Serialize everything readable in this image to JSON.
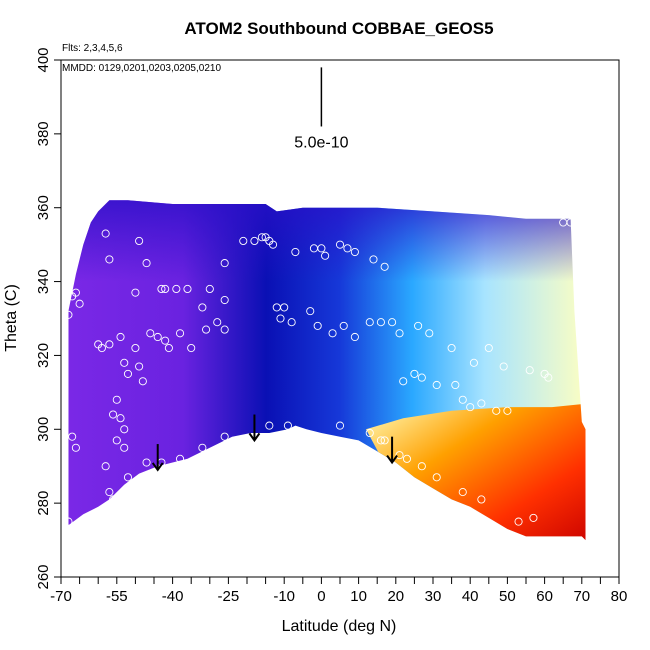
{
  "chart_data": {
    "type": "heatmap",
    "title": "ATOM2 Southbound COBBAE_GEOS5",
    "notes": {
      "flights": "Flts: 2,3,4,5,6",
      "dates": "MMDD: 0129,0201,0203,0205,0210"
    },
    "xlabel": "Latitude (deg N)",
    "ylabel": "Theta (C)",
    "xlim": [
      -70,
      80
    ],
    "ylim": [
      260,
      400
    ],
    "x_ticks": [
      -70,
      -55,
      -40,
      -25,
      -10,
      0,
      10,
      20,
      30,
      40,
      50,
      60,
      70,
      80
    ],
    "x_minor_ticks": [
      -65,
      -60,
      -50,
      -45,
      -35,
      -30,
      -20,
      -15,
      -5,
      5,
      15,
      25,
      35,
      45,
      55,
      65,
      75
    ],
    "y_ticks": [
      260,
      280,
      300,
      320,
      340,
      360,
      380,
      400
    ],
    "scale_bar": {
      "label": "5.0e-10",
      "x": 0,
      "y_top": 398,
      "y_bottom": 382
    },
    "colors": {
      "low": "#7a28e6",
      "mid": "#0a10b4",
      "cyan": "#2aa8ff",
      "pale": "#ffffc0",
      "orange": "#ffa000",
      "high": "#c80000"
    },
    "upper_boundary": [
      [
        -68,
        332
      ],
      [
        -66,
        342
      ],
      [
        -64,
        350
      ],
      [
        -62,
        356
      ],
      [
        -60,
        359
      ],
      [
        -57,
        362
      ],
      [
        -52,
        362
      ],
      [
        -40,
        361
      ],
      [
        -15,
        361
      ],
      [
        -12,
        359
      ],
      [
        -5,
        360
      ],
      [
        15,
        360
      ],
      [
        30,
        359
      ],
      [
        45,
        358
      ],
      [
        55,
        357
      ],
      [
        60,
        357
      ],
      [
        63,
        357
      ],
      [
        67,
        357
      ],
      [
        68,
        332
      ],
      [
        70,
        302
      ],
      [
        71,
        300
      ],
      [
        71,
        270
      ]
    ],
    "terrain": [
      [
        -68,
        274
      ],
      [
        -64,
        277
      ],
      [
        -60,
        279
      ],
      [
        -57,
        281
      ],
      [
        -53,
        285
      ],
      [
        -49,
        288
      ],
      [
        -44,
        290
      ],
      [
        -40,
        291
      ],
      [
        -36,
        292
      ],
      [
        -32,
        294
      ],
      [
        -28,
        296
      ],
      [
        -24,
        298
      ],
      [
        -19,
        299
      ],
      [
        -14,
        299
      ],
      [
        -9,
        300
      ],
      [
        -7,
        301
      ],
      [
        -4,
        300
      ],
      [
        0,
        299
      ],
      [
        5,
        298
      ],
      [
        10,
        297
      ],
      [
        15,
        294
      ],
      [
        20,
        291
      ],
      [
        25,
        287
      ],
      [
        30,
        284
      ],
      [
        35,
        281
      ],
      [
        40,
        279
      ],
      [
        45,
        276
      ],
      [
        50,
        273
      ],
      [
        55,
        271
      ],
      [
        60,
        271
      ],
      [
        66,
        271
      ],
      [
        70,
        271
      ],
      [
        71,
        270
      ]
    ],
    "arrows": [
      {
        "x": -44,
        "y_top": 296,
        "y_bottom": 289
      },
      {
        "x": -18,
        "y_top": 304,
        "y_bottom": 297
      },
      {
        "x": 19,
        "y_top": 298,
        "y_bottom": 291
      }
    ],
    "points": [
      [
        -58,
        353
      ],
      [
        -49,
        351
      ],
      [
        -57,
        346
      ],
      [
        -47,
        345
      ],
      [
        -50,
        337
      ],
      [
        -43,
        338
      ],
      [
        -42,
        338
      ],
      [
        -39,
        338
      ],
      [
        -36,
        338
      ],
      [
        -30,
        338
      ],
      [
        -26,
        345
      ],
      [
        -32,
        333
      ],
      [
        -26,
        335
      ],
      [
        -68,
        331
      ],
      [
        -67,
        336
      ],
      [
        -66,
        337
      ],
      [
        -65,
        334
      ],
      [
        -60,
        323
      ],
      [
        -59,
        322
      ],
      [
        -57,
        323
      ],
      [
        -54,
        325
      ],
      [
        -50,
        322
      ],
      [
        -46,
        326
      ],
      [
        -44,
        325
      ],
      [
        -42,
        324
      ],
      [
        -41,
        322
      ],
      [
        -38,
        326
      ],
      [
        -35,
        322
      ],
      [
        -31,
        327
      ],
      [
        -28,
        329
      ],
      [
        -26,
        327
      ],
      [
        -21,
        351
      ],
      [
        -18,
        351
      ],
      [
        -16,
        352
      ],
      [
        -15,
        352
      ],
      [
        -14,
        351
      ],
      [
        -13,
        350
      ],
      [
        -7,
        348
      ],
      [
        -2,
        349
      ],
      [
        0,
        349
      ],
      [
        1,
        347
      ],
      [
        5,
        350
      ],
      [
        7,
        349
      ],
      [
        9,
        348
      ],
      [
        14,
        346
      ],
      [
        17,
        344
      ],
      [
        -12,
        333
      ],
      [
        -10,
        333
      ],
      [
        -11,
        330
      ],
      [
        -8,
        329
      ],
      [
        -3,
        332
      ],
      [
        -1,
        328
      ],
      [
        3,
        326
      ],
      [
        6,
        328
      ],
      [
        9,
        325
      ],
      [
        13,
        329
      ],
      [
        16,
        329
      ],
      [
        19,
        329
      ],
      [
        21,
        326
      ],
      [
        26,
        328
      ],
      [
        29,
        326
      ],
      [
        35,
        322
      ],
      [
        41,
        318
      ],
      [
        45,
        322
      ],
      [
        49,
        317
      ],
      [
        56,
        316
      ],
      [
        60,
        315
      ],
      [
        61,
        314
      ],
      [
        22,
        313
      ],
      [
        25,
        315
      ],
      [
        27,
        314
      ],
      [
        31,
        312
      ],
      [
        36,
        312
      ],
      [
        38,
        308
      ],
      [
        40,
        306
      ],
      [
        43,
        307
      ],
      [
        47,
        305
      ],
      [
        50,
        305
      ],
      [
        -53,
        318
      ],
      [
        -52,
        315
      ],
      [
        -49,
        317
      ],
      [
        -48,
        313
      ],
      [
        -55,
        308
      ],
      [
        -56,
        304
      ],
      [
        -54,
        303
      ],
      [
        -53,
        300
      ],
      [
        -55,
        297
      ],
      [
        -53,
        295
      ],
      [
        -67,
        298
      ],
      [
        -66,
        295
      ],
      [
        -58,
        290
      ],
      [
        -52,
        287
      ],
      [
        -57,
        283
      ],
      [
        -56,
        281
      ],
      [
        -47,
        291
      ],
      [
        -43,
        291
      ],
      [
        -38,
        292
      ],
      [
        -32,
        295
      ],
      [
        -26,
        298
      ],
      [
        -14,
        301
      ],
      [
        -9,
        301
      ],
      [
        5,
        301
      ],
      [
        13,
        299
      ],
      [
        16,
        297
      ],
      [
        17,
        297
      ],
      [
        21,
        293
      ],
      [
        23,
        292
      ],
      [
        27,
        290
      ],
      [
        31,
        287
      ],
      [
        38,
        283
      ],
      [
        43,
        281
      ],
      [
        53,
        275
      ],
      [
        57,
        276
      ],
      [
        65,
        356
      ],
      [
        67,
        356
      ],
      [
        -68,
        275
      ]
    ]
  }
}
